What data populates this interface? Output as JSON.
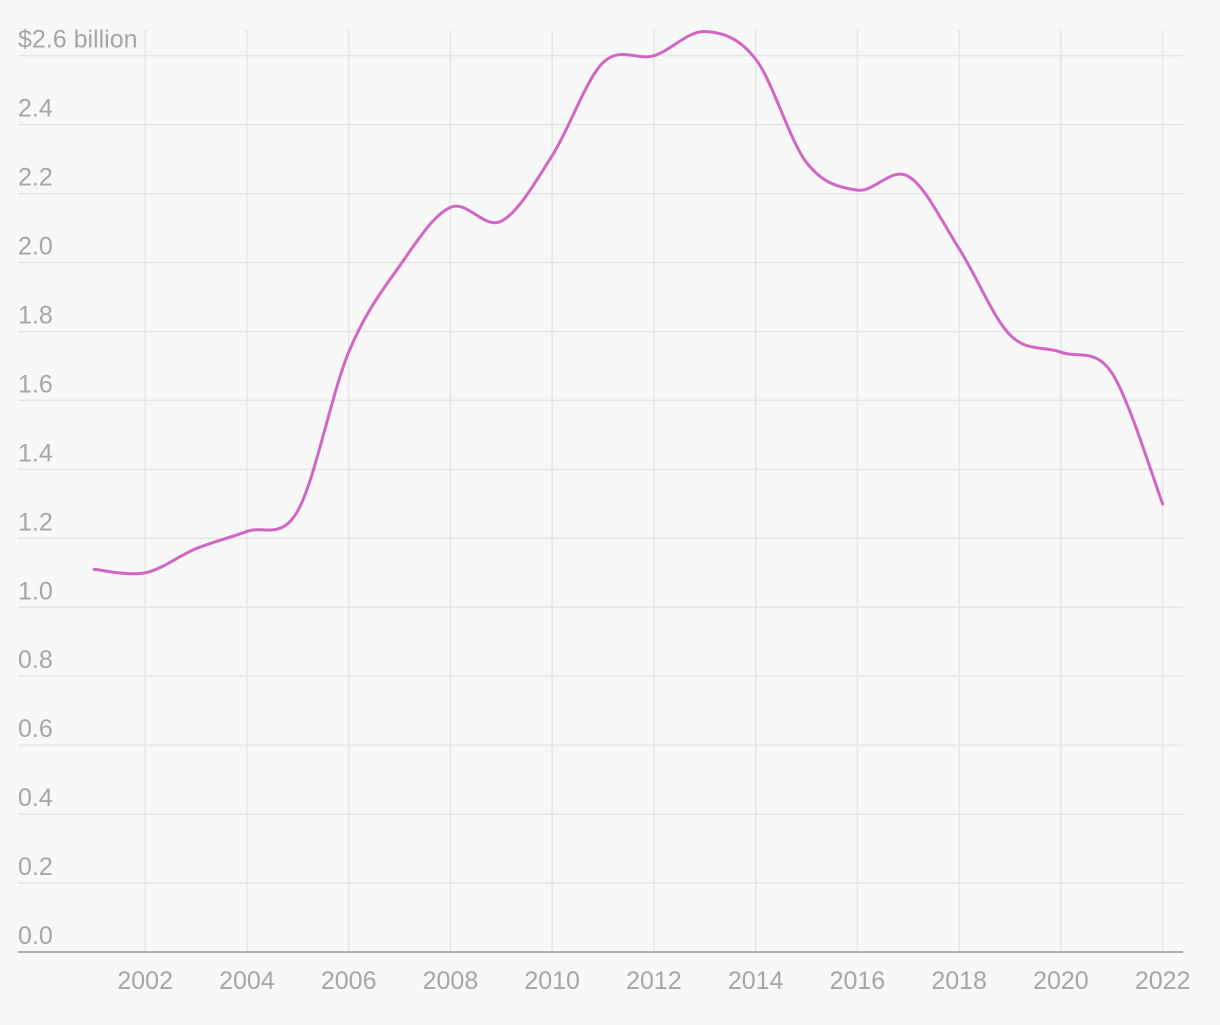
{
  "chart_data": {
    "type": "line",
    "title": "",
    "xlabel": "",
    "ylabel": "",
    "y_tick_labels": [
      "0.0",
      "0.2",
      "0.4",
      "0.6",
      "0.8",
      "1.0",
      "1.2",
      "1.4",
      "1.6",
      "1.8",
      "2.0",
      "2.2",
      "2.4",
      "$2.6 billion"
    ],
    "y_ticks": [
      0,
      0.2,
      0.4,
      0.6,
      0.8,
      1.0,
      1.2,
      1.4,
      1.6,
      1.8,
      2.0,
      2.2,
      2.4,
      2.6
    ],
    "x_ticks": [
      2002,
      2004,
      2006,
      2008,
      2010,
      2012,
      2014,
      2016,
      2018,
      2020,
      2022
    ],
    "x_tick_labels": [
      "2002",
      "2004",
      "2006",
      "2008",
      "2010",
      "2012",
      "2014",
      "2016",
      "2018",
      "2020",
      "2022"
    ],
    "xlim": [
      1999.5,
      2022.4
    ],
    "ylim": [
      0,
      2.66
    ],
    "grid": true,
    "series": [
      {
        "x": [
          2001,
          2002,
          2003,
          2004,
          2005,
          2006,
          2007,
          2008,
          2009,
          2010,
          2011,
          2012,
          2013,
          2014,
          2015,
          2016,
          2017,
          2018,
          2019,
          2020,
          2021,
          2022
        ],
        "values": [
          1.11,
          1.1,
          1.17,
          1.22,
          1.28,
          1.74,
          1.99,
          2.16,
          2.12,
          2.31,
          2.58,
          2.6,
          2.67,
          2.59,
          2.29,
          2.21,
          2.25,
          2.04,
          1.79,
          1.74,
          1.68,
          1.3
        ],
        "color": "#d166c3"
      }
    ]
  },
  "colors": {
    "background": "#f8f8f8",
    "grid": "#e6e6e6",
    "axis": "#999999",
    "tick_text": "#a6a6a6",
    "line": "#d166c3"
  }
}
